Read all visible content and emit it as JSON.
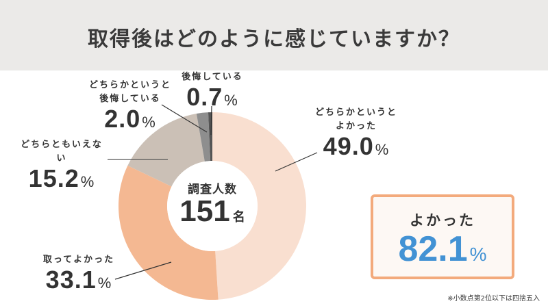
{
  "header": {
    "title": "取得後はどのように感じていますか？"
  },
  "center": {
    "caption": "調査人数",
    "count": "151",
    "unit": "名"
  },
  "labels": [
    {
      "caption1": "どちらかというと",
      "caption2": "よかった",
      "value": "49.0",
      "pct": "%"
    },
    {
      "caption1": "取ってよかった",
      "caption2": "",
      "value": "33.1",
      "pct": "%"
    },
    {
      "caption1": "どちらともいえない",
      "caption2": "",
      "value": "15.2",
      "pct": "%"
    },
    {
      "caption1": "どちらかというと",
      "caption2": "後悔している",
      "value": "2.0",
      "pct": "%"
    },
    {
      "caption1": "後悔している",
      "caption2": "",
      "value": "0.7",
      "pct": "%"
    }
  ],
  "summary": {
    "caption": "よかった",
    "value": "82.1",
    "pct": "%",
    "accent": "#4292d4",
    "border": "#f3aa7c"
  },
  "footnote": "※小数点第2位以下は四捨五入",
  "chart_data": {
    "type": "pie",
    "variant": "donut",
    "title": "取得後はどのように感じていますか？",
    "center_text": "調査人数 151名",
    "categories": [
      "どちらかというとよかった",
      "取ってよかった",
      "どちらともいえない",
      "どちらかというと後悔している",
      "後悔している"
    ],
    "values": [
      49.0,
      33.1,
      15.2,
      2.0,
      0.7
    ],
    "colors": [
      "#f9dfd0",
      "#f4b892",
      "#cbc0b6",
      "#8e8e8e",
      "#555555"
    ],
    "unit": "%",
    "start_angle": "12 o'clock",
    "direction": "clockwise",
    "annotation": "よかった 82.1%",
    "footnote": "※小数点第2位以下は四捨五入"
  }
}
